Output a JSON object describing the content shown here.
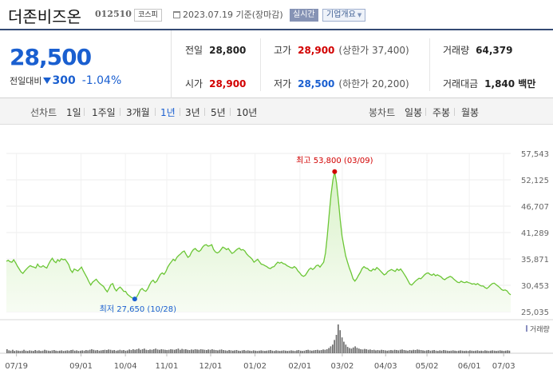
{
  "header": {
    "stock_name": "더존비즈온",
    "stock_code": "012510",
    "market": "코스피",
    "date_text": "2023.07.19 기준(장마감)",
    "realtime_label": "실시간",
    "overview_label": "기업개요"
  },
  "summary": {
    "current_price": "28,500",
    "change_label": "전일대비",
    "change_value": "300",
    "change_percent": "-1.04%",
    "prev_close_label": "전일",
    "prev_close": "28,800",
    "high_label": "고가",
    "high": "28,900",
    "upper_limit": "(상한가 37,400)",
    "volume_label": "거래량",
    "volume": "64,379",
    "open_label": "시가",
    "open": "28,900",
    "low_label": "저가",
    "low": "28,500",
    "lower_limit": "(하한가 20,200)",
    "amount_label": "거래대금",
    "amount": "1,840 백만"
  },
  "period_bar": {
    "line_chart_label": "선차트",
    "periods": [
      "1일",
      "1주일",
      "3개월",
      "1년",
      "3년",
      "5년",
      "10년"
    ],
    "active_period": "1년",
    "candle_chart_label": "봉차트",
    "candle_periods": [
      "일봉",
      "주봉",
      "월봉"
    ]
  },
  "colors": {
    "accent_blue": "#1a5fd0",
    "up_red": "#d20000",
    "line_green": "#6bc635",
    "fill_green": "#d9f2c8"
  },
  "chart_data": [
    {
      "type": "area",
      "title": "",
      "ylim": [
        25035,
        57543
      ],
      "y_ticks": [
        "57,543",
        "52,125",
        "46,707",
        "41,289",
        "35,871",
        "30,453",
        "25,035"
      ],
      "x_ticks": [
        "07/19",
        "09/01",
        "10/04",
        "11/01",
        "12/01",
        "01/02",
        "02/01",
        "03/02",
        "04/03",
        "05/02",
        "06/01",
        "07/03"
      ],
      "grid": true,
      "high_annotation": "최고 53,800 (03/09)",
      "low_annotation": "최저 27,650 (10/28)",
      "series": [
        {
          "values": [
            35400,
            35600,
            35300,
            35200,
            35700,
            35100,
            34400,
            33800,
            33200,
            32900,
            33400,
            33800,
            34200,
            34500,
            34300,
            34200,
            34000,
            34800,
            34300,
            34200,
            34500,
            34200,
            34000,
            34800,
            35500,
            36000,
            35400,
            35100,
            35700,
            35400,
            35900,
            35700,
            35800,
            35300,
            34700,
            33600,
            33100,
            33800,
            33600,
            33400,
            33800,
            34200,
            33400,
            32700,
            32000,
            31200,
            30500,
            31100,
            31400,
            31700,
            31200,
            30800,
            30500,
            30200,
            29600,
            29100,
            29800,
            30600,
            30800,
            29800,
            29300,
            29800,
            30100,
            29700,
            29200,
            29200,
            28600,
            28300,
            28000,
            27800,
            27650,
            28000,
            28700,
            29500,
            29800,
            29400,
            29200,
            29700,
            30500,
            31200,
            31500,
            31000,
            31300,
            32000,
            32700,
            33000,
            32700,
            33300,
            34200,
            34800,
            35300,
            35800,
            35500,
            36200,
            36600,
            36900,
            37300,
            37500,
            36800,
            36200,
            36500,
            37300,
            37800,
            38000,
            37600,
            37400,
            37700,
            38300,
            38700,
            38800,
            38500,
            38600,
            38800,
            37800,
            37300,
            37100,
            37300,
            37800,
            38300,
            38100,
            37800,
            38000,
            37500,
            37000,
            37200,
            37600,
            37900,
            38100,
            37700,
            37800,
            37500,
            36900,
            36500,
            36200,
            35800,
            35200,
            35500,
            35800,
            35300,
            34800,
            34700,
            34500,
            34300,
            34000,
            33900,
            34200,
            34300,
            34800,
            35200,
            35000,
            35200,
            34900,
            34800,
            34500,
            34300,
            34100,
            34000,
            34300,
            34000,
            33400,
            33000,
            32500,
            32300,
            32500,
            33100,
            33700,
            34000,
            33700,
            34000,
            34500,
            34600,
            34200,
            34700,
            35200,
            37100,
            40700,
            45000,
            49000,
            52000,
            53800,
            51500,
            48000,
            44000,
            40600,
            38500,
            36500,
            35200,
            34000,
            33000,
            31800,
            31300,
            31800,
            32500,
            33100,
            33900,
            34300,
            34000,
            33900,
            33500,
            33400,
            33800,
            33600,
            34100,
            33800,
            33400,
            33000,
            32600,
            32800,
            33300,
            33500,
            33700,
            33500,
            33300,
            33800,
            33500,
            33800,
            33300,
            32700,
            32100,
            31400,
            30700,
            30500,
            30900,
            31300,
            31600,
            31900,
            31800,
            32200,
            32600,
            32900,
            33000,
            32700,
            32500,
            32800,
            32400,
            32600,
            32400,
            32200,
            31800,
            31600,
            31900,
            32100,
            32300,
            32100,
            31700,
            31400,
            31100,
            31000,
            31300,
            31100,
            31000,
            31200,
            31000,
            30900,
            30700,
            30800,
            30600,
            30800,
            30500,
            30300,
            30300,
            30000,
            29800,
            30100,
            30500,
            30800,
            30900,
            30600,
            30300,
            30000,
            29600,
            29400,
            29500,
            29300,
            28800,
            28500
          ]
        }
      ]
    },
    {
      "type": "bar",
      "title": "",
      "legend": [
        "거래량"
      ],
      "series": [
        {
          "name": "거래량",
          "values": [
            14,
            10,
            9,
            12,
            8,
            10,
            9,
            8,
            9,
            12,
            9,
            8,
            10,
            9,
            8,
            11,
            9,
            10,
            8,
            9,
            12,
            10,
            9,
            8,
            10,
            11,
            9,
            8,
            9,
            10,
            8,
            9,
            10,
            9,
            11,
            12,
            9,
            10,
            8,
            9,
            10,
            9,
            11,
            10,
            12,
            14,
            12,
            10,
            11,
            9,
            10,
            11,
            12,
            11,
            13,
            12,
            10,
            11,
            9,
            10,
            12,
            10,
            11,
            9,
            10,
            13,
            11,
            14,
            12,
            14,
            16,
            12,
            14,
            16,
            12,
            11,
            13,
            12,
            14,
            16,
            13,
            12,
            14,
            13,
            12,
            11,
            12,
            14,
            13,
            12,
            14,
            16,
            12,
            15,
            13,
            14,
            12,
            11,
            13,
            12,
            14,
            13,
            12,
            14,
            13,
            12,
            11,
            13,
            12,
            14,
            12,
            11,
            10,
            12,
            13,
            11,
            10,
            9,
            11,
            10,
            9,
            10,
            11,
            9,
            8,
            10,
            11,
            9,
            10,
            9,
            8,
            10,
            9,
            8,
            9,
            10,
            9,
            8,
            9,
            10,
            11,
            9,
            8,
            10,
            9,
            8,
            9,
            10,
            9,
            8,
            9,
            10,
            9,
            8,
            10,
            11,
            9,
            8,
            9,
            11,
            12,
            10,
            9,
            10,
            11,
            12,
            10,
            11,
            13,
            12,
            14,
            18,
            24,
            30,
            46,
            64,
            100,
            80,
            55,
            40,
            30,
            22,
            18,
            16,
            20,
            24,
            19,
            16,
            14,
            13,
            15,
            14,
            12,
            13,
            11,
            12,
            10,
            11,
            10,
            12,
            11,
            10,
            9,
            10,
            11,
            10,
            12,
            11,
            10,
            12,
            13,
            11,
            10,
            9,
            11,
            10,
            12,
            11,
            13,
            12,
            11,
            10,
            9,
            10,
            11,
            9,
            10,
            11,
            9,
            8,
            10,
            9,
            11,
            10,
            9,
            8,
            9,
            10,
            9,
            8,
            9,
            10,
            9,
            8,
            9,
            8,
            10,
            9,
            8,
            9,
            10,
            8,
            9,
            8,
            10,
            9,
            8,
            9,
            10,
            9,
            8,
            9,
            10,
            9,
            8,
            9,
            10,
            9
          ]
        }
      ]
    }
  ]
}
